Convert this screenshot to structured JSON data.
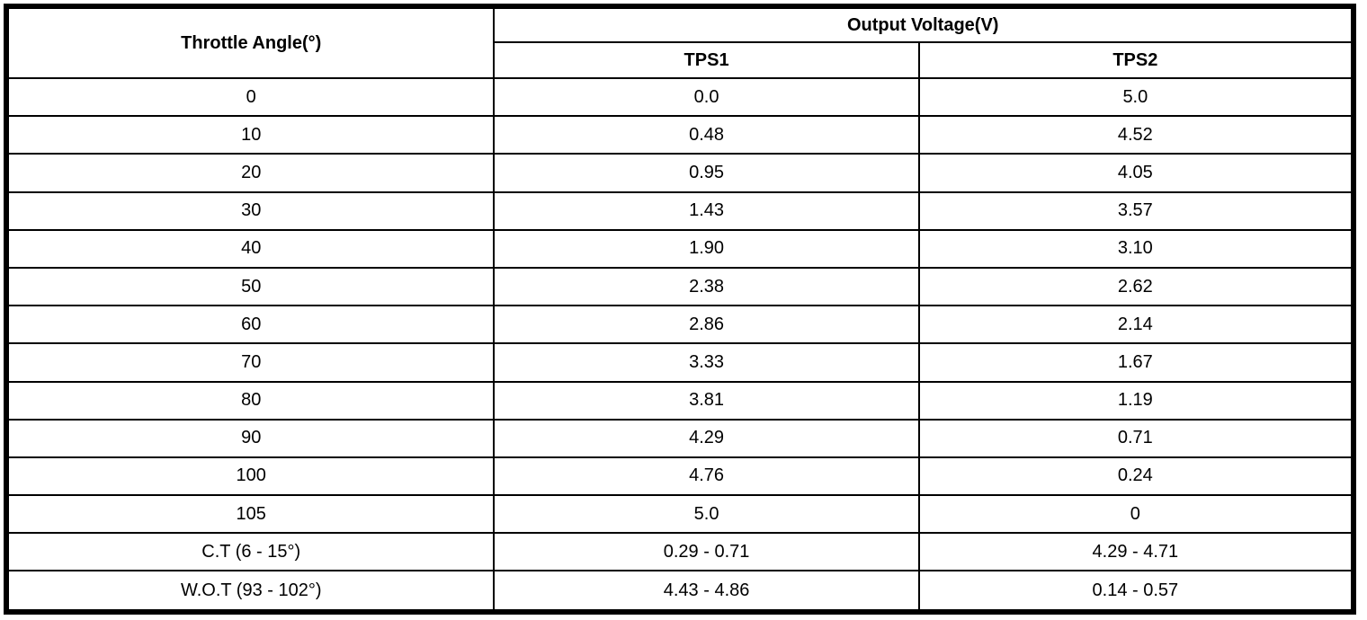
{
  "colors": {
    "border": "#000000",
    "background": "#ffffff",
    "text": "#000000"
  },
  "table": {
    "header": {
      "throttle_angle": "Throttle Angle(°)",
      "output_voltage": "Output Voltage(V)",
      "tps1": "TPS1",
      "tps2": "TPS2"
    },
    "rows": [
      {
        "angle": "0",
        "tps1": "0.0",
        "tps2": "5.0"
      },
      {
        "angle": "10",
        "tps1": "0.48",
        "tps2": "4.52"
      },
      {
        "angle": "20",
        "tps1": "0.95",
        "tps2": "4.05"
      },
      {
        "angle": "30",
        "tps1": "1.43",
        "tps2": "3.57"
      },
      {
        "angle": "40",
        "tps1": "1.90",
        "tps2": "3.10"
      },
      {
        "angle": "50",
        "tps1": "2.38",
        "tps2": "2.62"
      },
      {
        "angle": "60",
        "tps1": "2.86",
        "tps2": "2.14"
      },
      {
        "angle": "70",
        "tps1": "3.33",
        "tps2": "1.67"
      },
      {
        "angle": "80",
        "tps1": "3.81",
        "tps2": "1.19"
      },
      {
        "angle": "90",
        "tps1": "4.29",
        "tps2": "0.71"
      },
      {
        "angle": "100",
        "tps1": "4.76",
        "tps2": "0.24"
      },
      {
        "angle": "105",
        "tps1": "5.0",
        "tps2": "0"
      },
      {
        "angle": "C.T (6 - 15°)",
        "tps1": "0.29 - 0.71",
        "tps2": "4.29 - 4.71"
      },
      {
        "angle": "W.O.T (93 - 102°)",
        "tps1": "4.43 - 4.86",
        "tps2": "0.14 - 0.57"
      }
    ]
  }
}
